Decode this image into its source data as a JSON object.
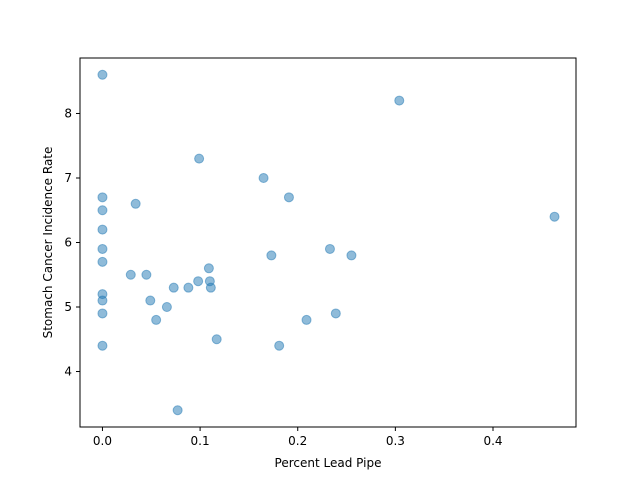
{
  "chart_data": {
    "type": "scatter",
    "title": "",
    "xlabel": "Percent Lead Pipe",
    "ylabel": "Stomach Cancer Incidence Rate",
    "xlim": [
      -0.023,
      0.485
    ],
    "ylim": [
      3.14,
      8.86
    ],
    "xticks": [
      0.0,
      0.1,
      0.2,
      0.3,
      0.4
    ],
    "xtick_labels": [
      "0.0",
      "0.1",
      "0.2",
      "0.3",
      "0.4"
    ],
    "yticks": [
      4,
      5,
      6,
      7,
      8
    ],
    "ytick_labels": [
      "4",
      "5",
      "6",
      "7",
      "8"
    ],
    "grid": false,
    "point_color": "#1f77b4",
    "point_alpha": 0.5,
    "points": [
      {
        "x": 0.0,
        "y": 8.6
      },
      {
        "x": 0.0,
        "y": 6.7
      },
      {
        "x": 0.0,
        "y": 6.5
      },
      {
        "x": 0.0,
        "y": 6.2
      },
      {
        "x": 0.0,
        "y": 5.9
      },
      {
        "x": 0.0,
        "y": 5.7
      },
      {
        "x": 0.0,
        "y": 5.2
      },
      {
        "x": 0.0,
        "y": 5.1
      },
      {
        "x": 0.0,
        "y": 4.9
      },
      {
        "x": 0.0,
        "y": 4.4
      },
      {
        "x": 0.029,
        "y": 5.5
      },
      {
        "x": 0.034,
        "y": 6.6
      },
      {
        "x": 0.045,
        "y": 5.5
      },
      {
        "x": 0.049,
        "y": 5.1
      },
      {
        "x": 0.055,
        "y": 4.8
      },
      {
        "x": 0.066,
        "y": 5.0
      },
      {
        "x": 0.073,
        "y": 5.3
      },
      {
        "x": 0.077,
        "y": 3.4
      },
      {
        "x": 0.088,
        "y": 5.3
      },
      {
        "x": 0.098,
        "y": 5.4
      },
      {
        "x": 0.099,
        "y": 7.3
      },
      {
        "x": 0.109,
        "y": 5.6
      },
      {
        "x": 0.11,
        "y": 5.4
      },
      {
        "x": 0.111,
        "y": 5.3
      },
      {
        "x": 0.117,
        "y": 4.5
      },
      {
        "x": 0.165,
        "y": 7.0
      },
      {
        "x": 0.173,
        "y": 5.8
      },
      {
        "x": 0.181,
        "y": 4.4
      },
      {
        "x": 0.191,
        "y": 6.7
      },
      {
        "x": 0.209,
        "y": 4.8
      },
      {
        "x": 0.233,
        "y": 5.9
      },
      {
        "x": 0.239,
        "y": 4.9
      },
      {
        "x": 0.255,
        "y": 5.8
      },
      {
        "x": 0.304,
        "y": 8.2
      },
      {
        "x": 0.463,
        "y": 6.4
      }
    ]
  }
}
